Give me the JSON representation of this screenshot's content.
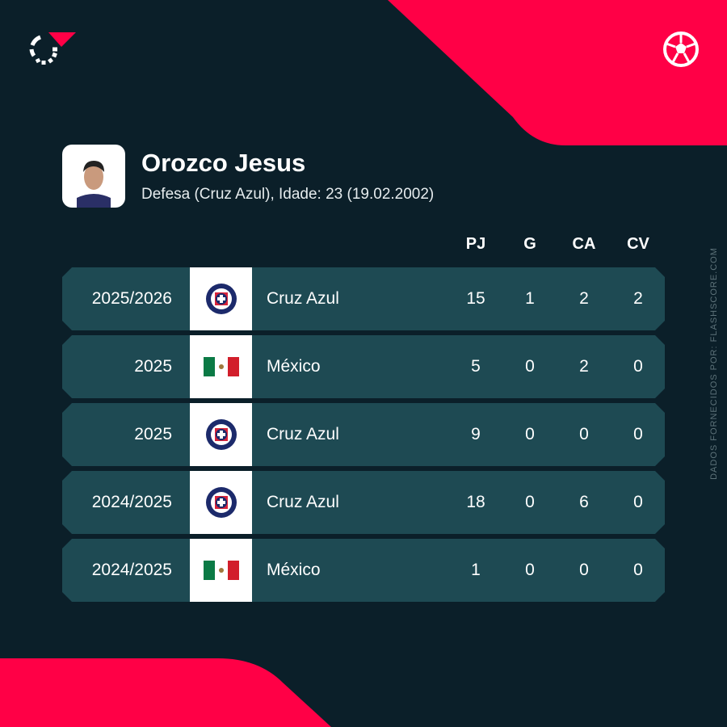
{
  "brand": {
    "accent": "#ff0046",
    "background": "#0b1f29",
    "row": "#1e4a53",
    "logo_icon": "flashscore-logo",
    "sport_icon": "soccer-ball-icon"
  },
  "player": {
    "name": "Orozco Jesus",
    "info": "Defesa (Cruz Azul), Idade: 23 (19.02.2002)"
  },
  "columns": [
    "PJ",
    "G",
    "CA",
    "CV"
  ],
  "rows": [
    {
      "season": "2025/2026",
      "team": "Cruz Azul",
      "crest": "cruz-azul-crest",
      "pj": "15",
      "g": "1",
      "ca": "2",
      "cv": "2"
    },
    {
      "season": "2025",
      "team": "México",
      "crest": "mexico-flag",
      "pj": "5",
      "g": "0",
      "ca": "2",
      "cv": "0"
    },
    {
      "season": "2025",
      "team": "Cruz Azul",
      "crest": "cruz-azul-crest",
      "pj": "9",
      "g": "0",
      "ca": "0",
      "cv": "0"
    },
    {
      "season": "2024/2025",
      "team": "Cruz Azul",
      "crest": "cruz-azul-crest",
      "pj": "18",
      "g": "0",
      "ca": "6",
      "cv": "0"
    },
    {
      "season": "2024/2025",
      "team": "México",
      "crest": "mexico-flag",
      "pj": "1",
      "g": "0",
      "ca": "0",
      "cv": "0"
    }
  ],
  "credit": "DADOS FORNECIDOS POR: FLASHSCORE.COM"
}
